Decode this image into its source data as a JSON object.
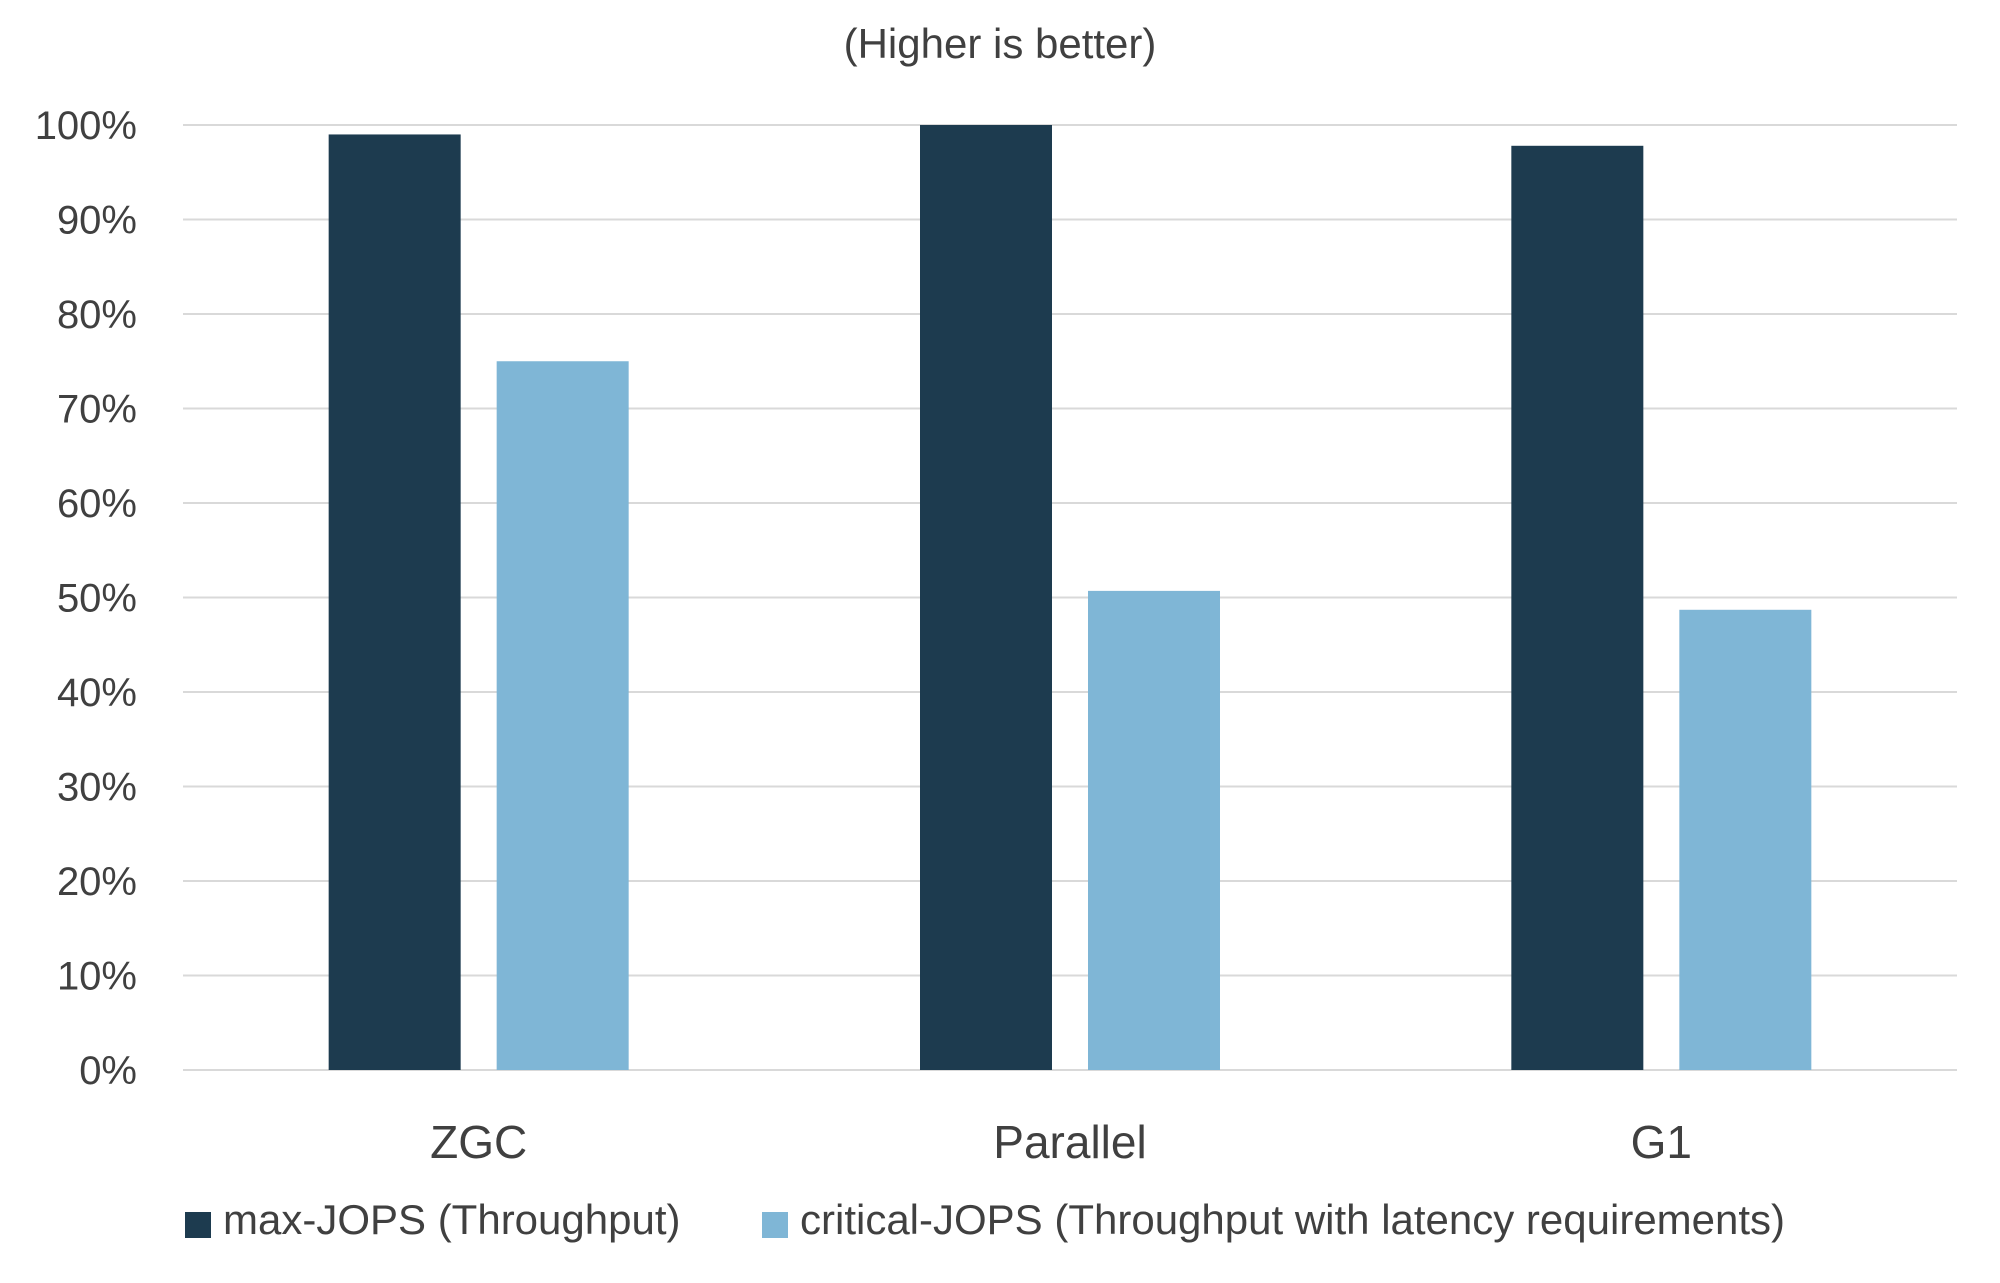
{
  "chart_data": {
    "type": "bar",
    "title": "",
    "subtitle": "(Higher is better)",
    "xlabel": "",
    "ylabel": "",
    "categories": [
      "ZGC",
      "Parallel",
      "G1"
    ],
    "series": [
      {
        "name": "max-JOPS (Throughput)",
        "values": [
          99,
          100,
          97.8
        ],
        "color": "#1d3b4f"
      },
      {
        "name": "critical-JOPS (Throughput with latency requirements)",
        "values": [
          75,
          50.7,
          48.7
        ],
        "color": "#7fb6d6"
      }
    ],
    "ylim": [
      0,
      100
    ],
    "yticks": [
      0,
      10,
      20,
      30,
      40,
      50,
      60,
      70,
      80,
      90,
      100
    ],
    "ytick_format": "percent",
    "grid": true,
    "legend_position": "bottom",
    "grid_color": "#d9d9d9",
    "text_color": "#404040"
  }
}
